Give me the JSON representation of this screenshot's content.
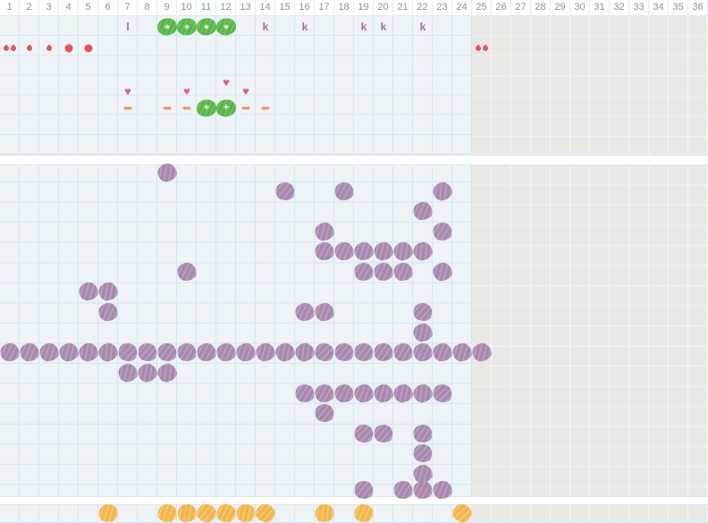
{
  "colors": {
    "grid_background": "#edf3f7",
    "grid_line": "#d6e5ef",
    "inactive_background": "#eae8e5",
    "purple": "#a888ae",
    "yellow": "#f4b54b",
    "green": "#58b645",
    "red": "#e25555",
    "heart": "#d95f8a",
    "dash": "#f0905a",
    "letter": "#a76b9e"
  },
  "cycle": {
    "days_total": 36,
    "active_days": 24
  },
  "header_days": [
    "1",
    "2",
    "3",
    "4",
    "5",
    "6",
    "7",
    "8",
    "9",
    "10",
    "11",
    "12",
    "13",
    "14",
    "15",
    "16",
    "17",
    "18",
    "19",
    "20",
    "21",
    "22",
    "23",
    "24",
    "25",
    "26",
    "27",
    "28",
    "29",
    "30",
    "31",
    "32",
    "33",
    "34",
    "35",
    "36"
  ],
  "glyphs": {
    "l_label": "l",
    "k_label": "k",
    "heart": "♥",
    "green_sparkle": "*",
    "green_plus": "+"
  },
  "top_rows": {
    "annotations_row": {
      "l_marks": [
        7
      ],
      "green_sparkles": [
        9,
        10,
        11,
        12
      ],
      "k_marks": [
        14,
        16,
        19,
        20,
        22
      ]
    },
    "bleeding_row": [
      {
        "col": 1,
        "type": "spotting-double"
      },
      {
        "col": 2,
        "type": "spotting"
      },
      {
        "col": 3,
        "type": "spotting"
      },
      {
        "col": 4,
        "type": "medium"
      },
      {
        "col": 5,
        "type": "medium"
      },
      {
        "col": 25,
        "type": "spotting-double"
      }
    ],
    "hearts_row": [
      {
        "col": 7,
        "high": false
      },
      {
        "col": 10,
        "high": false
      },
      {
        "col": 12,
        "high": true
      },
      {
        "col": 13,
        "high": false
      }
    ],
    "marks_row": {
      "dashes": [
        7,
        9,
        10,
        13,
        14
      ],
      "green_plus": [
        11,
        12
      ]
    }
  },
  "middle_blobs": [
    {
      "row": 0,
      "cols": [
        9
      ]
    },
    {
      "row": 1,
      "cols": [
        15,
        18,
        23
      ]
    },
    {
      "row": 2,
      "cols": [
        22
      ]
    },
    {
      "row": 3,
      "cols": [
        17,
        23
      ]
    },
    {
      "row": 4,
      "cols": [
        17,
        18,
        19,
        20,
        21,
        22
      ]
    },
    {
      "row": 5,
      "cols": [
        10,
        19,
        20,
        21,
        23
      ]
    },
    {
      "row": 6,
      "cols": [
        5,
        6
      ]
    },
    {
      "row": 7,
      "cols": [
        6,
        16,
        17,
        22
      ]
    },
    {
      "row": 8,
      "cols": [
        22
      ]
    },
    {
      "row": 9,
      "cols": [
        1,
        2,
        3,
        4,
        5,
        6,
        7,
        8,
        9,
        10,
        11,
        12,
        13,
        14,
        15,
        16,
        17,
        18,
        19,
        20,
        21,
        22,
        23,
        24,
        25
      ]
    },
    {
      "row": 10,
      "cols": [
        7,
        8,
        9
      ]
    },
    {
      "row": 11,
      "cols": [
        16,
        17,
        18,
        19,
        20,
        21,
        22,
        23
      ]
    },
    {
      "row": 12,
      "cols": [
        17
      ]
    },
    {
      "row": 13,
      "cols": [
        19,
        20,
        22
      ]
    },
    {
      "row": 14,
      "cols": [
        22
      ]
    },
    {
      "row": 15,
      "cols": [
        22
      ]
    },
    {
      "row": 16,
      "cols": [
        19,
        21,
        22,
        23
      ]
    }
  ],
  "bottom_blobs": [
    6,
    9,
    10,
    11,
    12,
    13,
    14,
    17,
    19,
    24
  ]
}
